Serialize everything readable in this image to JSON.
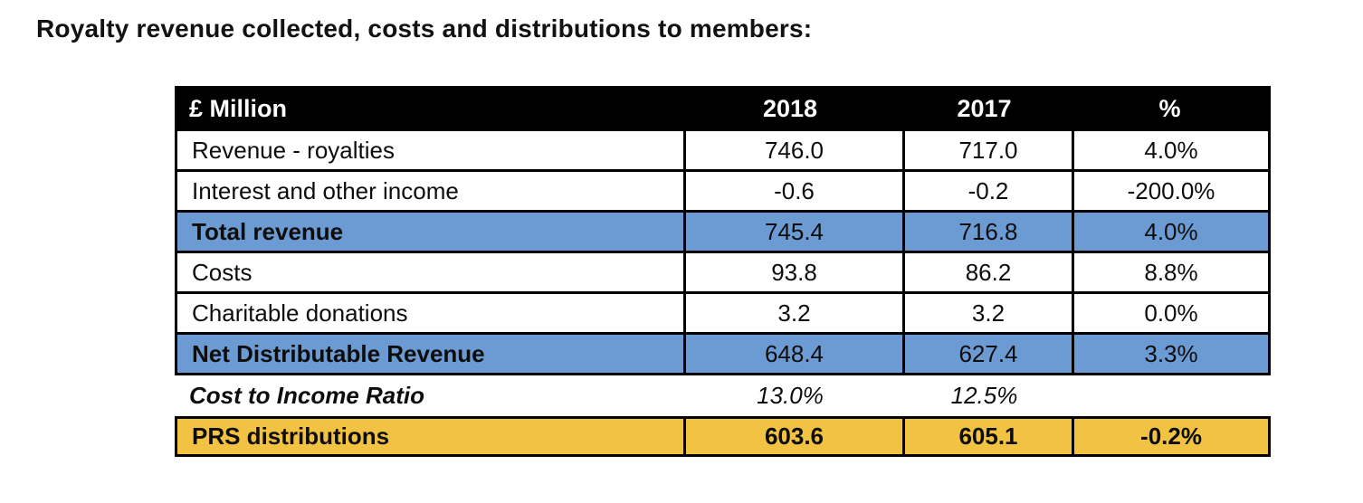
{
  "page": {
    "title": "Royalty revenue collected, costs and distributions to members:"
  },
  "colors": {
    "header-bg": "#000000",
    "row-blue": "#6B9BD2",
    "row-gold": "#F2C342",
    "border": "#000000",
    "header-text": "#ffffff"
  },
  "table": {
    "columns": [
      "£ Million",
      "2018",
      "2017",
      "%"
    ],
    "rows": [
      {
        "label": "Revenue - royalties",
        "y2018": "746.0",
        "y2017": "717.0",
        "pct": "4.0%"
      },
      {
        "label": "Interest and other income",
        "y2018": "-0.6",
        "y2017": "-0.2",
        "pct": "-200.0%"
      },
      {
        "label": "Total revenue",
        "y2018": "745.4",
        "y2017": "716.8",
        "pct": "4.0%"
      },
      {
        "label": "Costs",
        "y2018": "93.8",
        "y2017": "86.2",
        "pct": "8.8%"
      },
      {
        "label": "Charitable donations",
        "y2018": "3.2",
        "y2017": "3.2",
        "pct": "0.0%"
      },
      {
        "label": "Net Distributable Revenue",
        "y2018": "648.4",
        "y2017": "627.4",
        "pct": "3.3%"
      },
      {
        "label": "Cost to Income Ratio",
        "y2018": "13.0%",
        "y2017": "12.5%",
        "pct": ""
      },
      {
        "label": "PRS distributions",
        "y2018": "603.6",
        "y2017": "605.1",
        "pct": "-0.2%"
      }
    ]
  }
}
